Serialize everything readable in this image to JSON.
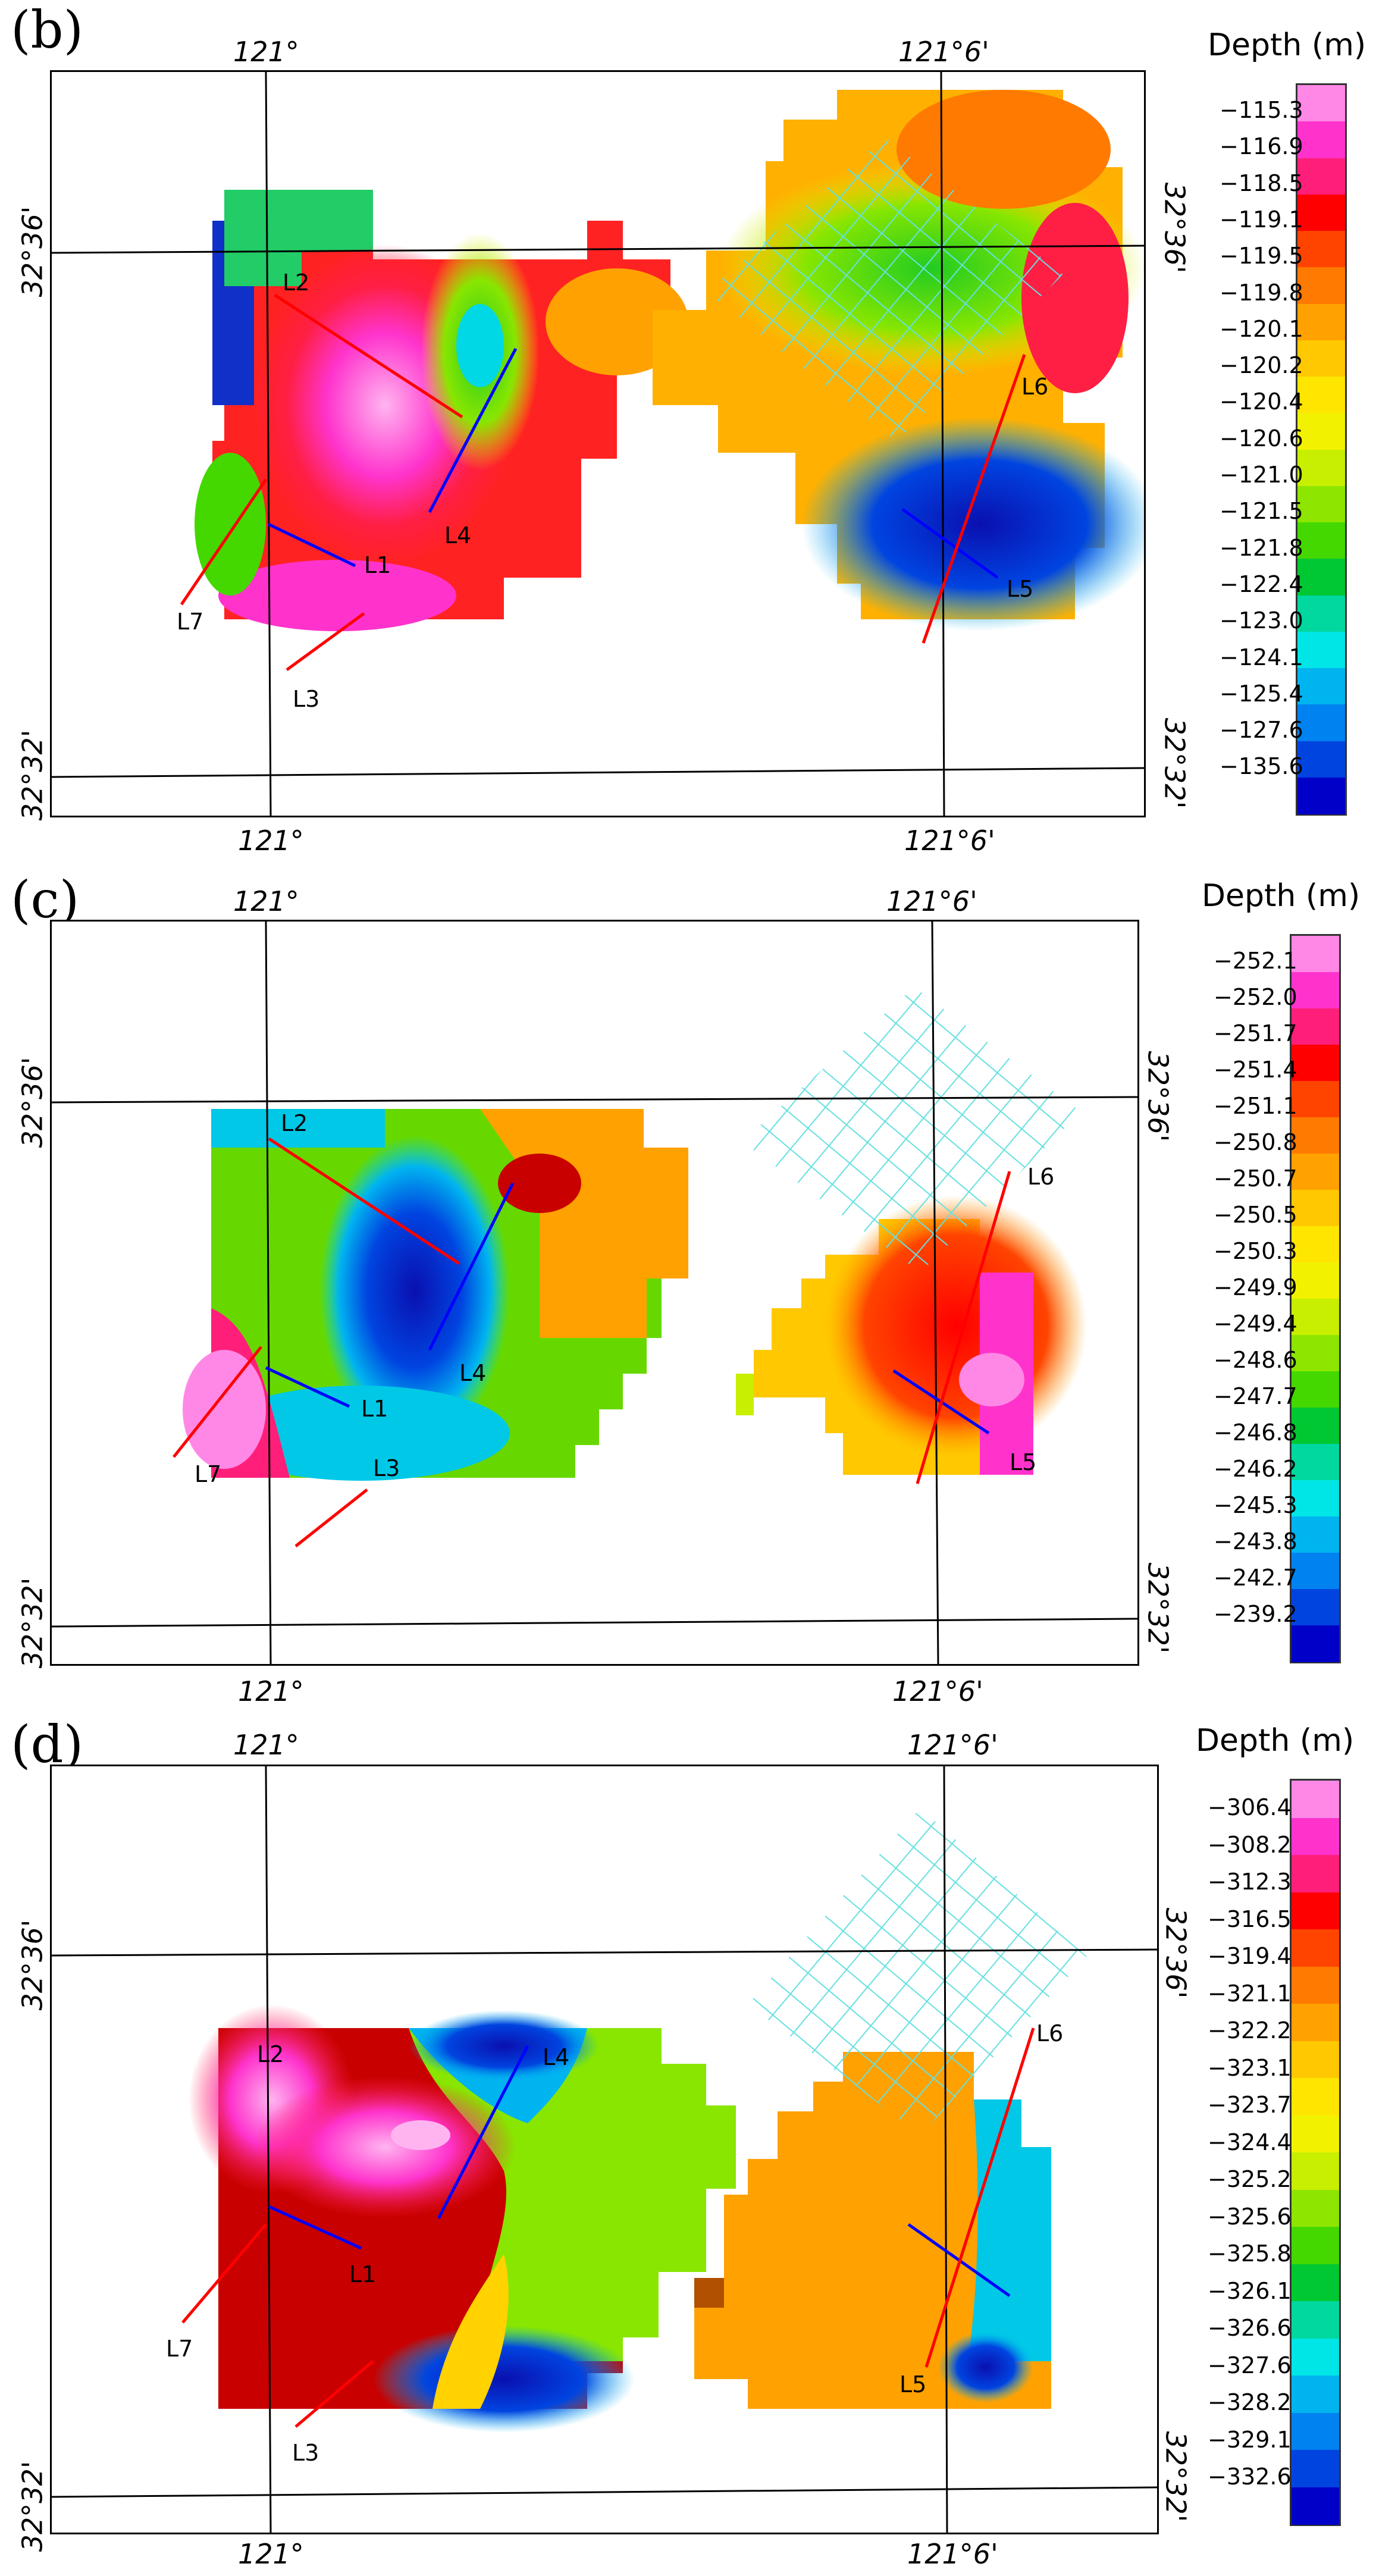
{
  "legend_title": "Depth (m)",
  "colors": [
    "#ff88e6",
    "#ff33cc",
    "#ff1f7a",
    "#ff0000",
    "#ff4400",
    "#ff7a00",
    "#ffa100",
    "#ffc800",
    "#ffe600",
    "#f2f200",
    "#c8ee00",
    "#8ee600",
    "#44d800",
    "#00c832",
    "#00d8a0",
    "#00e6e6",
    "#00b4f0",
    "#0082f0",
    "#0044e0",
    "#0000c8"
  ],
  "panels": [
    {
      "label": "(b)",
      "top_lon_left": "121°",
      "top_lon_right": "121°6'",
      "bot_lon_left": "121°",
      "bot_lon_right": "121°6'",
      "lat_top": "32°36'",
      "lat_bot": "32°32'",
      "legend_ticks": [
        "-115.3",
        "-116.9",
        "-118.5",
        "-119.1",
        "-119.5",
        "-119.8",
        "-120.1",
        "-120.2",
        "-120.4",
        "-120.6",
        "-121.0",
        "-121.5",
        "-121.8",
        "-122.4",
        "-123.0",
        "-124.1",
        "-125.4",
        "-127.6",
        "-135.6"
      ],
      "profile_labels": {
        "L1": "L1",
        "L2": "L2",
        "L3": "L3",
        "L4": "L4",
        "L5": "L5",
        "L6": "L6",
        "L7": "L7"
      }
    },
    {
      "label": "(c)",
      "top_lon_left": "121°",
      "top_lon_right": "121°6'",
      "bot_lon_left": "121°",
      "bot_lon_right": "121°6'",
      "lat_top": "32°36'",
      "lat_bot": "32°32'",
      "legend_ticks": [
        "-252.1",
        "-252.0",
        "-251.7",
        "-251.4",
        "-251.1",
        "-250.8",
        "-250.7",
        "-250.5",
        "-250.3",
        "-249.9",
        "-249.4",
        "-248.6",
        "-247.7",
        "-246.8",
        "-246.2",
        "-245.3",
        "-243.8",
        "-242.7",
        "-239.2"
      ],
      "profile_labels": {
        "L1": "L1",
        "L2": "L2",
        "L3": "L3",
        "L4": "L4",
        "L5": "L5",
        "L6": "L6",
        "L7": "L7"
      }
    },
    {
      "label": "(d)",
      "top_lon_left": "121°",
      "top_lon_right": "121°6'",
      "bot_lon_left": "121°",
      "bot_lon_right": "121°6'",
      "lat_top": "32°36'",
      "lat_bot": "32°32'",
      "legend_ticks": [
        "-306.4",
        "-308.2",
        "-312.3",
        "-316.5",
        "-319.4",
        "-321.1",
        "-322.2",
        "-323.1",
        "-323.7",
        "-324.4",
        "-325.2",
        "-325.6",
        "-325.8",
        "-326.1",
        "-326.6",
        "-327.6",
        "-328.2",
        "-329.1",
        "-332.6"
      ],
      "profile_labels": {
        "L1": "L1",
        "L2": "L2",
        "L3": "L3",
        "L4": "L4",
        "L5": "L5",
        "L6": "L6",
        "L7": "L7"
      }
    }
  ]
}
